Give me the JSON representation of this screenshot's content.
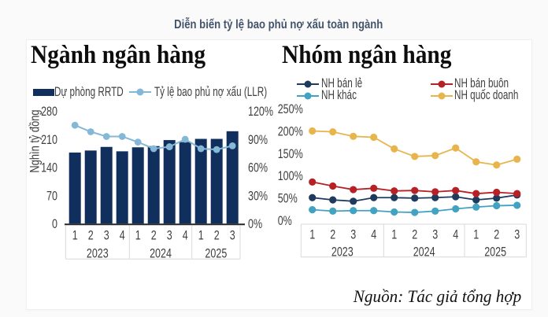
{
  "page": {
    "title": "Diễn biến tỷ lệ bao phủ nợ xấu toàn ngành",
    "title_color": "#44546a",
    "source_note": "Nguồn: Tác giả tổng hợp"
  },
  "chart_data": [
    {
      "type": "bar",
      "title": "Ngành ngân hàng",
      "ylabel": "Nghìn tỷ đồng",
      "quarters": [
        "1",
        "2",
        "3",
        "4",
        "1",
        "2",
        "3",
        "4",
        "1",
        "2",
        "3"
      ],
      "year_groups": [
        {
          "label": "2023",
          "count": 4
        },
        {
          "label": "2024",
          "count": 4
        },
        {
          "label": "2025",
          "count": 3
        }
      ],
      "left_axis": {
        "ticks": [
          0,
          70,
          140,
          210,
          280
        ],
        "max": 280
      },
      "right_axis": {
        "ticks": [
          "0%",
          "30%",
          "60%",
          "90%",
          "120%"
        ],
        "max": 120
      },
      "series": [
        {
          "name": "Dự phòng RRTD",
          "kind": "bar",
          "axis": "left",
          "color": "#112f5c",
          "values": [
            177,
            182,
            191,
            180,
            190,
            193,
            208,
            203,
            211,
            211,
            230
          ]
        },
        {
          "name": "Tỷ lệ bao phủ nợ xấu (LLR)",
          "kind": "line",
          "axis": "right",
          "color": "#85b8d6",
          "values": [
            105,
            98,
            93,
            93,
            87,
            80,
            82,
            90,
            80,
            79,
            83
          ]
        }
      ]
    },
    {
      "type": "line",
      "title": "Nhóm ngân hàng",
      "quarters": [
        "1",
        "2",
        "3",
        "4",
        "1",
        "2",
        "3",
        "4",
        "1",
        "2",
        "3"
      ],
      "year_groups": [
        {
          "label": "2023",
          "count": 4
        },
        {
          "label": "2024",
          "count": 4
        },
        {
          "label": "2025",
          "count": 3
        }
      ],
      "axis": {
        "ticks": [
          "0%",
          "50%",
          "100%",
          "150%",
          "200%",
          "250%"
        ],
        "max": 250
      },
      "series": [
        {
          "name": "NH bán lẻ",
          "color": "#1e3a5c",
          "values": [
            51,
            46,
            43,
            51,
            51,
            50,
            51,
            53,
            46,
            50,
            57
          ]
        },
        {
          "name": "NH bán buôn",
          "color": "#b72025",
          "values": [
            86,
            77,
            69,
            72,
            66,
            67,
            64,
            67,
            60,
            63,
            60
          ]
        },
        {
          "name": "NH khác",
          "color": "#41a2c1",
          "values": [
            24,
            21,
            22,
            22,
            19,
            18,
            21,
            26,
            30,
            33,
            34
          ]
        },
        {
          "name": "NH quốc doanh",
          "color": "#e8b54d",
          "values": [
            200,
            198,
            188,
            186,
            160,
            143,
            145,
            162,
            131,
            124,
            137
          ]
        }
      ]
    }
  ]
}
